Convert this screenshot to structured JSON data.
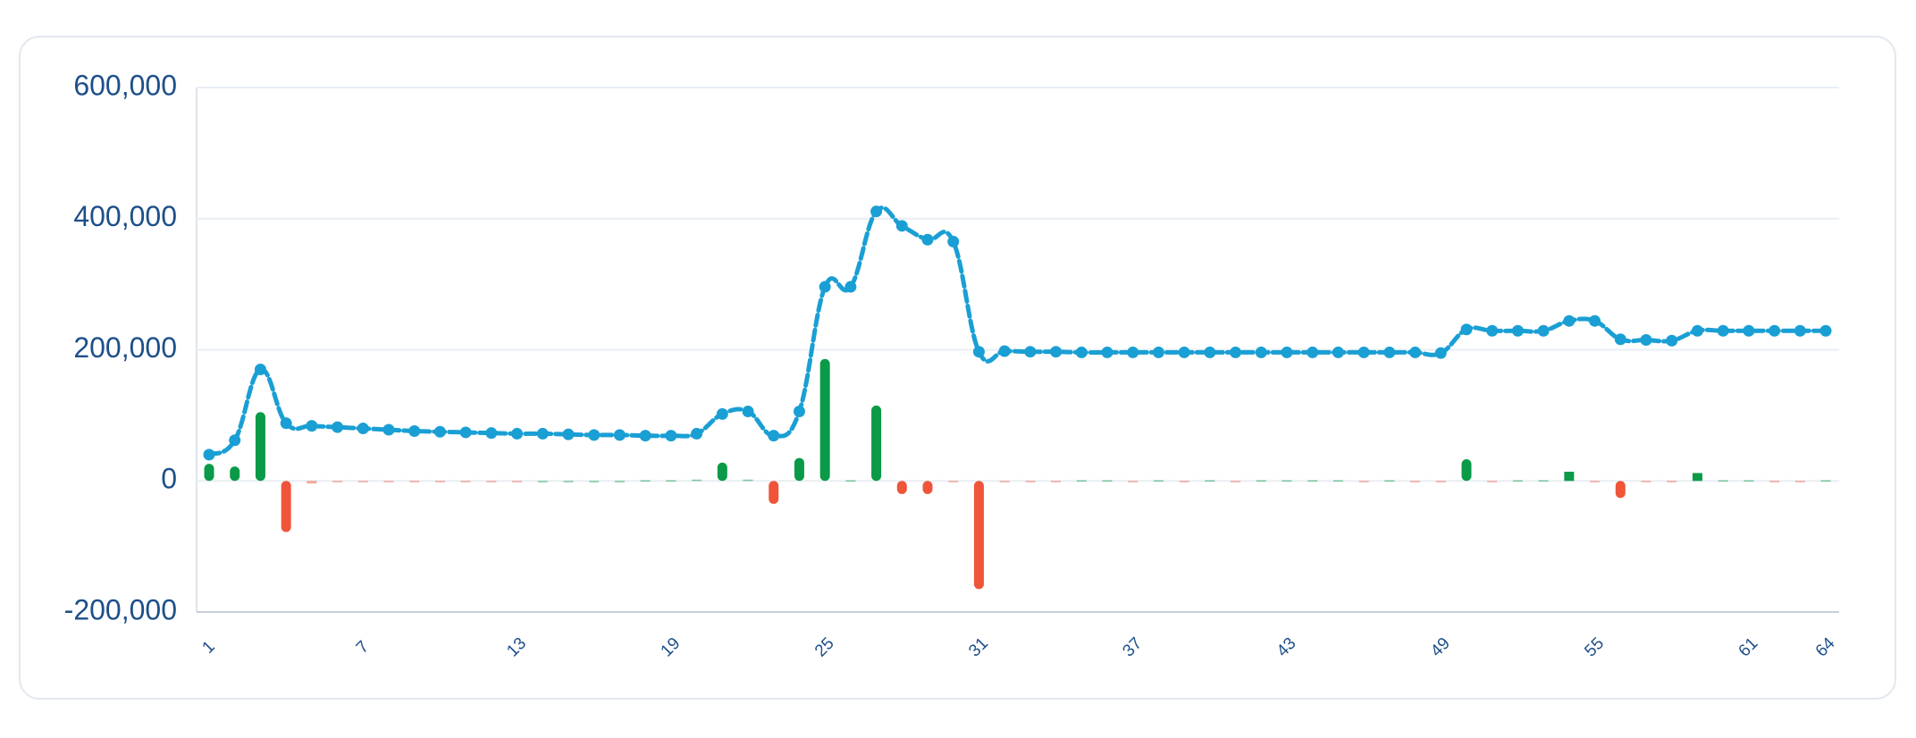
{
  "chart_data": {
    "type": "combo",
    "categories": [
      "1",
      null,
      null,
      null,
      null,
      null,
      "7",
      null,
      null,
      null,
      null,
      null,
      "13",
      null,
      null,
      null,
      null,
      null,
      "19",
      null,
      null,
      null,
      null,
      null,
      "25",
      null,
      null,
      null,
      null,
      null,
      "31",
      null,
      null,
      null,
      null,
      null,
      "37",
      null,
      null,
      null,
      null,
      null,
      "43",
      null,
      null,
      null,
      null,
      null,
      "49",
      null,
      null,
      null,
      null,
      null,
      "55",
      null,
      null,
      null,
      null,
      null,
      "61",
      null,
      null,
      "64"
    ],
    "series": [
      {
        "type": "bar",
        "color": "#0a9a48",
        "negative_color": "#f0553a",
        "values": [
          26000,
          22000,
          105000,
          -78000,
          -4000,
          -1000,
          -1000,
          -1000,
          -1000,
          -1000,
          -1000,
          -1000,
          -1000,
          0,
          0,
          0,
          0,
          1000,
          1000,
          2000,
          28000,
          2000,
          -35000,
          35000,
          186000,
          1000,
          115000,
          -20000,
          -20000,
          -2000,
          -165000,
          -1000,
          -1000,
          -1000,
          1000,
          1000,
          -1000,
          1000,
          -1000,
          1000,
          -1000,
          1000,
          1000,
          1000,
          1000,
          -1000,
          1000,
          -1000,
          -1000,
          33000,
          -1000,
          1000,
          1000,
          14000,
          -1000,
          -26000,
          -1000,
          -1000,
          12000,
          1000,
          1000,
          -1000,
          -1000,
          1000
        ]
      },
      {
        "type": "line",
        "color": "#1a9fd4",
        "values": [
          40000,
          62000,
          170000,
          88000,
          84000,
          82000,
          80000,
          78000,
          76000,
          75000,
          74000,
          73000,
          72000,
          72000,
          71000,
          70000,
          70000,
          69000,
          69000,
          72000,
          102000,
          106000,
          69000,
          106000,
          296000,
          296000,
          411000,
          389000,
          368000,
          365000,
          197000,
          198000,
          197000,
          197000,
          196000,
          196000,
          196000,
          196000,
          196000,
          196000,
          196000,
          196000,
          196000,
          196000,
          196000,
          196000,
          196000,
          196000,
          195000,
          231000,
          229000,
          229000,
          229000,
          244000,
          244000,
          216000,
          215000,
          214000,
          229000,
          229000,
          229000,
          229000,
          229000,
          229000
        ]
      }
    ],
    "ylim": [
      -200000,
      600000
    ],
    "yticks": [
      {
        "value": -200000,
        "label": "-200,000"
      },
      0,
      {
        "value": 200000,
        "label": "200,000"
      },
      {
        "value": 400000,
        "label": "400,000"
      },
      {
        "value": 600000,
        "label": "600,000"
      }
    ],
    "grid": true
  }
}
